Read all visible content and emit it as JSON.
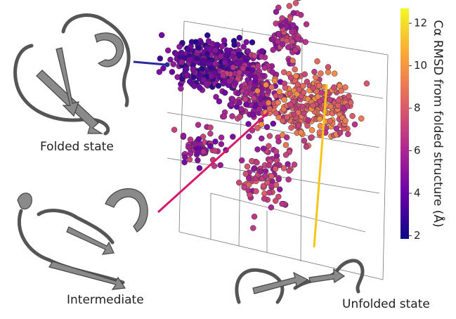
{
  "labels": {
    "folded": "Folded state",
    "intermediate": "Intermediate",
    "unfolded": "Unfolded state"
  },
  "colorbar": {
    "label": "Cα RMSD from  folded structure (Å)",
    "lim": [
      1.85,
      12.7
    ],
    "ticks": [
      2,
      4,
      6,
      8,
      10,
      12
    ]
  }
}
